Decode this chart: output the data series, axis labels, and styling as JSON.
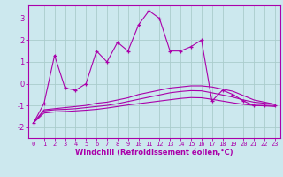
{
  "xlabel": "Windchill (Refroidissement éolien,°C)",
  "background_color": "#cce8ee",
  "grid_color": "#aacccc",
  "line_color": "#aa00aa",
  "xlim": [
    -0.5,
    23.5
  ],
  "ylim": [
    -2.5,
    3.6
  ],
  "xticks": [
    0,
    1,
    2,
    3,
    4,
    5,
    6,
    7,
    8,
    9,
    10,
    11,
    12,
    13,
    14,
    15,
    16,
    17,
    18,
    19,
    20,
    21,
    22,
    23
  ],
  "yticks": [
    -2,
    -1,
    0,
    1,
    2,
    3
  ],
  "series": [
    {
      "x": [
        0,
        1,
        2,
        3,
        4,
        5,
        6,
        7,
        8,
        9,
        10,
        11,
        12,
        13,
        14,
        15,
        16,
        17,
        18,
        19,
        20,
        21,
        22,
        23
      ],
      "y": [
        -1.8,
        -0.9,
        1.3,
        -0.2,
        -0.3,
        0.0,
        1.5,
        1.0,
        1.9,
        1.5,
        2.7,
        3.35,
        3.0,
        1.5,
        1.5,
        1.7,
        2.0,
        -0.8,
        -0.3,
        -0.5,
        -0.8,
        -1.0,
        -1.0,
        -1.0
      ],
      "marker": "+"
    },
    {
      "x": [
        0,
        1,
        2,
        3,
        4,
        5,
        6,
        7,
        8,
        9,
        10,
        11,
        12,
        13,
        14,
        15,
        16,
        17,
        18,
        19,
        20,
        21,
        22,
        23
      ],
      "y": [
        -1.8,
        -1.2,
        -1.15,
        -1.1,
        -1.05,
        -1.0,
        -0.9,
        -0.85,
        -0.75,
        -0.65,
        -0.5,
        -0.4,
        -0.3,
        -0.2,
        -0.15,
        -0.1,
        -0.1,
        -0.15,
        -0.25,
        -0.35,
        -0.55,
        -0.75,
        -0.85,
        -0.95
      ],
      "marker": null
    },
    {
      "x": [
        0,
        1,
        2,
        3,
        4,
        5,
        6,
        7,
        8,
        9,
        10,
        11,
        12,
        13,
        14,
        15,
        16,
        17,
        18,
        19,
        20,
        21,
        22,
        23
      ],
      "y": [
        -1.8,
        -1.25,
        -1.2,
        -1.18,
        -1.15,
        -1.1,
        -1.05,
        -1.0,
        -0.92,
        -0.82,
        -0.72,
        -0.62,
        -0.52,
        -0.42,
        -0.36,
        -0.32,
        -0.33,
        -0.42,
        -0.52,
        -0.62,
        -0.75,
        -0.85,
        -0.9,
        -0.95
      ],
      "marker": null
    },
    {
      "x": [
        0,
        1,
        2,
        3,
        4,
        5,
        6,
        7,
        8,
        9,
        10,
        11,
        12,
        13,
        14,
        15,
        16,
        17,
        18,
        19,
        20,
        21,
        22,
        23
      ],
      "y": [
        -1.8,
        -1.35,
        -1.3,
        -1.28,
        -1.25,
        -1.22,
        -1.18,
        -1.12,
        -1.05,
        -0.98,
        -0.92,
        -0.86,
        -0.8,
        -0.74,
        -0.68,
        -0.64,
        -0.65,
        -0.72,
        -0.8,
        -0.88,
        -0.95,
        -1.0,
        -1.02,
        -1.05
      ],
      "marker": null
    }
  ]
}
